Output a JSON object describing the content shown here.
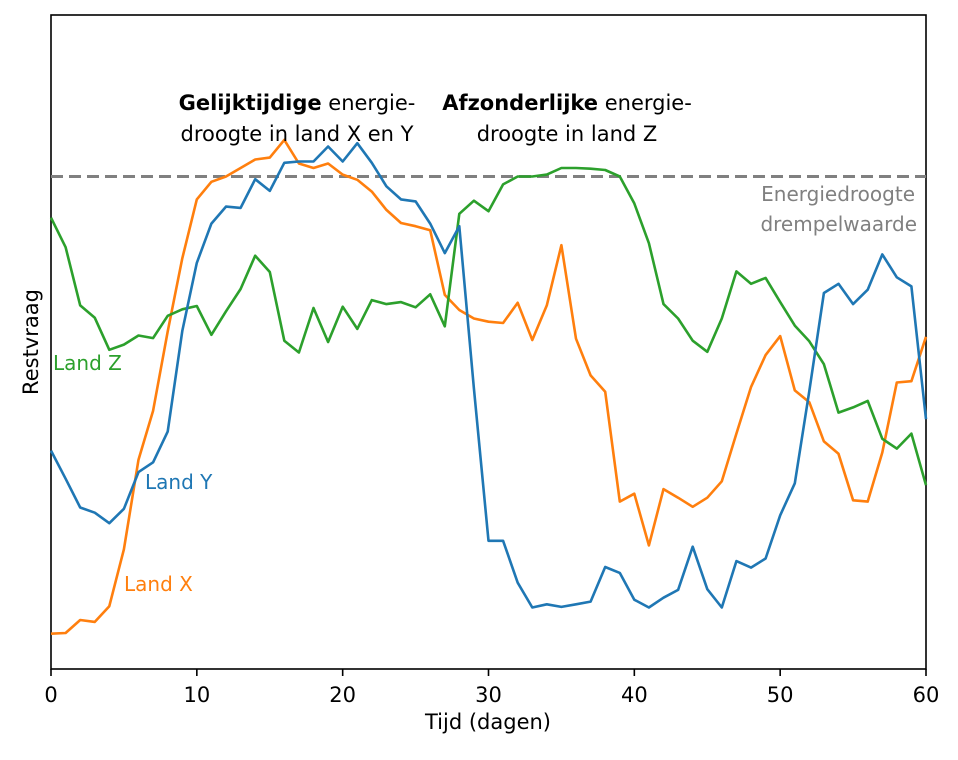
{
  "chart_data": {
    "type": "line",
    "title": "",
    "xlabel": "Tijd (dagen)",
    "ylabel": "Restvraag",
    "xlim": [
      0,
      60
    ],
    "ylim": [
      0,
      100
    ],
    "xticks": [
      0,
      10,
      20,
      30,
      40,
      50,
      60
    ],
    "grid": false,
    "x": [
      0,
      1,
      2,
      3,
      4,
      5,
      6,
      7,
      8,
      9,
      10,
      11,
      12,
      13,
      14,
      15,
      16,
      17,
      18,
      19,
      20,
      21,
      22,
      23,
      24,
      25,
      26,
      27,
      28,
      29,
      30,
      31,
      32,
      33,
      34,
      35,
      36,
      37,
      38,
      39,
      40,
      41,
      42,
      43,
      44,
      45,
      46,
      47,
      48,
      49,
      50,
      51,
      52,
      53,
      54,
      55,
      56,
      57,
      58,
      59,
      60
    ],
    "series": [
      {
        "name": "Land X",
        "color": "#ff7f0e",
        "values": [
          5.4,
          5.5,
          7.5,
          7.2,
          9.6,
          18.3,
          32.0,
          39.5,
          51.6,
          62.8,
          71.8,
          74.5,
          75.3,
          76.6,
          77.9,
          78.2,
          80.9,
          77.3,
          76.6,
          77.3,
          75.6,
          74.8,
          73.0,
          70.2,
          68.2,
          67.7,
          67.1,
          57.2,
          54.9,
          53.6,
          53.1,
          52.9,
          56.0,
          50.3,
          55.6,
          64.8,
          50.5,
          44.9,
          42.4,
          25.6,
          26.8,
          18.9,
          27.5,
          26.2,
          24.8,
          26.2,
          28.7,
          36.0,
          43.1,
          48.0,
          50.9,
          42.6,
          40.8,
          34.8,
          32.9,
          25.8,
          25.6,
          33.1,
          43.8,
          44.0,
          50.8
        ]
      },
      {
        "name": "Land Y",
        "color": "#1f77b4",
        "values": [
          33.4,
          29.1,
          24.7,
          23.9,
          22.3,
          24.5,
          30.1,
          31.6,
          36.3,
          51.7,
          62.1,
          68.1,
          70.7,
          70.5,
          74.9,
          73.1,
          77.4,
          77.6,
          77.6,
          79.9,
          77.6,
          80.4,
          77.4,
          73.8,
          71.8,
          71.5,
          68.1,
          63.6,
          67.7,
          42.9,
          19.6,
          19.6,
          13.2,
          9.4,
          9.9,
          9.5,
          9.9,
          10.3,
          15.6,
          14.7,
          10.6,
          9.4,
          10.9,
          12.1,
          18.7,
          12.2,
          9.4,
          16.5,
          15.5,
          16.9,
          23.5,
          28.4,
          42.5,
          57.5,
          58.9,
          55.8,
          58.0,
          63.4,
          59.9,
          58.5,
          38.2
        ]
      },
      {
        "name": "Land Z",
        "color": "#2ca02c",
        "values": [
          69.0,
          64.5,
          55.6,
          53.7,
          48.8,
          49.6,
          51.0,
          50.6,
          54.0,
          55.0,
          55.5,
          51.1,
          54.7,
          58.1,
          63.2,
          60.7,
          50.2,
          48.4,
          55.2,
          50.0,
          55.4,
          52.0,
          56.4,
          55.8,
          56.1,
          55.3,
          57.3,
          52.4,
          69.6,
          71.6,
          70.0,
          74.1,
          75.3,
          75.3,
          75.6,
          76.6,
          76.6,
          76.5,
          76.3,
          75.3,
          71.2,
          65.1,
          55.8,
          53.6,
          50.2,
          48.5,
          53.6,
          60.8,
          58.9,
          59.8,
          56.1,
          52.5,
          50.1,
          46.6,
          39.2,
          40.0,
          41.0,
          35.2,
          33.7,
          36.0,
          28.1
        ]
      }
    ],
    "threshold": {
      "value": 75.3,
      "label_line1": "Energiedroogte",
      "label_line2": "drempelwaarde",
      "color": "#808080"
    },
    "series_labels": {
      "z": "Land Z",
      "y": "Land Y",
      "x": "Land X"
    },
    "annotations": {
      "left_bold": "Gelijktijdige",
      "left_rest": " energie-",
      "left_line2": "droogte in land X en Y",
      "right_bold": "Afzonderlijke",
      "right_rest": " energie-",
      "right_line2": "droogte in land Z"
    }
  }
}
